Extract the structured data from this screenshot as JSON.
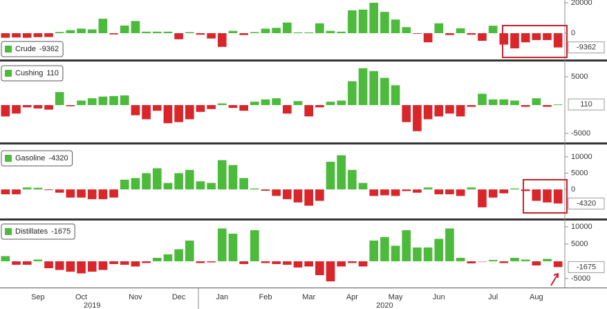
{
  "chart_data": [
    {
      "type": "bar",
      "series": [
        {
          "name": "Crude",
          "color": "#4cbb3c",
          "negative_color": "#d9262a",
          "values": [
            -3000,
            -2800,
            -3000,
            -2600,
            -2500,
            800,
            2000,
            3000,
            2500,
            9500,
            -800,
            5000,
            8000,
            1000,
            1000,
            1000,
            -4000,
            700,
            -1000,
            -3500,
            -9000,
            1500,
            -1200,
            700,
            3000,
            3500,
            7000,
            500,
            500,
            6500,
            1500,
            1000,
            15000,
            15500,
            20000,
            14000,
            9000,
            4000,
            -400,
            -6000,
            6500,
            -1200,
            3200,
            -1000,
            -5000,
            4900,
            -7500,
            -10000,
            -6000,
            -4500,
            -4500,
            -9362
          ]
        }
      ],
      "ylim": [
        -16800,
        21800
      ],
      "yticks": [
        0,
        20000
      ]
    },
    {
      "type": "bar",
      "series": [
        {
          "name": "Cushing",
          "color": "#4cbb3c",
          "negative_color": "#d9262a",
          "values": [
            -2000,
            -1500,
            -400,
            -600,
            -800,
            2300,
            -200,
            800,
            1200,
            1500,
            1600,
            1700,
            -1800,
            -2500,
            -1000,
            -3200,
            -3000,
            -2500,
            -1200,
            -700,
            300,
            -500,
            -1000,
            600,
            1000,
            1200,
            -1500,
            700,
            -2000,
            -400,
            600,
            800,
            4200,
            6500,
            6000,
            4800,
            3500,
            -3000,
            -4600,
            -2500,
            -2000,
            -1500,
            -2000,
            -300,
            2000,
            1000,
            1000,
            800,
            -300,
            1200,
            -300,
            110
          ]
        }
      ],
      "ylim": [
        -6460,
        7560
      ],
      "yticks": [
        -5000,
        5000
      ]
    },
    {
      "type": "bar",
      "series": [
        {
          "name": "Gasoline",
          "color": "#4cbb3c",
          "negative_color": "#d9262a",
          "values": [
            -1500,
            -1500,
            600,
            500,
            -200,
            -1000,
            -2500,
            -2500,
            -3000,
            -3000,
            -2500,
            3000,
            3500,
            5000,
            6500,
            2000,
            5000,
            6000,
            2500,
            2000,
            9000,
            7500,
            3500,
            300,
            -400,
            -2000,
            -3000,
            -4000,
            -5000,
            -3500,
            8500,
            10500,
            6000,
            2000,
            -2000,
            -1800,
            -2000,
            -500,
            -1000,
            600,
            -1500,
            -1500,
            -2000,
            600,
            -5500,
            -2500,
            -1200,
            300,
            -500,
            -3500,
            -4000,
            -4320
          ]
        }
      ],
      "ylim": [
        -8700,
        13600
      ],
      "yticks": [
        0,
        5000,
        10000
      ]
    },
    {
      "type": "bar",
      "series": [
        {
          "name": "Distillates",
          "color": "#4cbb3c",
          "negative_color": "#d9262a",
          "values": [
            1500,
            -1000,
            -1000,
            500,
            -2000,
            -2500,
            -3000,
            -3500,
            -3000,
            -2500,
            -800,
            -1000,
            -1500,
            -500,
            1000,
            2000,
            3500,
            6000,
            -500,
            -300,
            9500,
            8000,
            -800,
            9000,
            -500,
            -800,
            -1000,
            -1800,
            -1500,
            -4000,
            -5800,
            -1500,
            -500,
            -1500,
            6000,
            7000,
            4500,
            9000,
            4000,
            4000,
            6500,
            9500,
            1000,
            -600,
            -100,
            400,
            -500,
            1000,
            500,
            -1200,
            700,
            -1675
          ]
        }
      ],
      "ylim": [
        -7400,
        11600
      ],
      "yticks": [
        -5000,
        5000,
        10000
      ],
      "categories": [
        null,
        null,
        null,
        "Sep",
        null,
        null,
        null,
        "Oct",
        null,
        null,
        null,
        null,
        "Nov",
        null,
        null,
        null,
        "Dec",
        null,
        null,
        null,
        "Jan",
        null,
        null,
        null,
        "Feb",
        null,
        null,
        null,
        "Mar",
        null,
        null,
        null,
        "Apr",
        null,
        null,
        null,
        "May",
        null,
        null,
        null,
        "Jun",
        null,
        null,
        null,
        null,
        "Jul",
        null,
        null,
        null,
        "Aug",
        null,
        null
      ],
      "year_categories": [
        null,
        null,
        null,
        null,
        null,
        null,
        null,
        null,
        "2019",
        null,
        null,
        null,
        null,
        null,
        null,
        null,
        null,
        null,
        null,
        null,
        null,
        null,
        null,
        null,
        null,
        null,
        null,
        null,
        null,
        null,
        null,
        null,
        null,
        null,
        null,
        "2020",
        null,
        null,
        null,
        null,
        null,
        null,
        null,
        null,
        null,
        null,
        null,
        null,
        null,
        null,
        null,
        null
      ]
    }
  ]
}
